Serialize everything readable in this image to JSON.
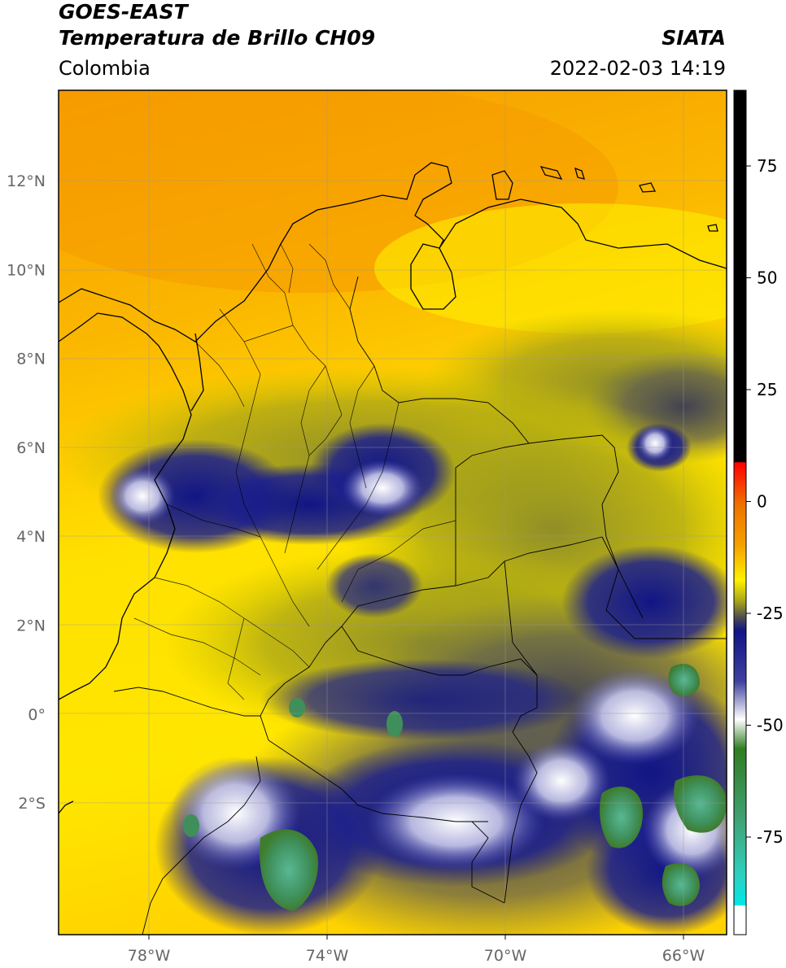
{
  "header": {
    "title_line1": "GOES-EAST",
    "title_line2": "Temperatura de Brillo CH09",
    "brand": "SIATA",
    "region": "Colombia",
    "datetime": "2022-02-03 14:19"
  },
  "map": {
    "lon_ticks": [
      "78°W",
      "74°W",
      "70°W",
      "66°W"
    ],
    "lat_ticks": [
      "12°N",
      "10°N",
      "8°N",
      "6°N",
      "4°N",
      "2°N",
      "0°",
      "2°S"
    ],
    "colorbar": {
      "ticks": [
        "75",
        "50",
        "25",
        "0",
        "-25",
        "-50",
        "-75"
      ],
      "colors": {
        "black": "#000000",
        "red": "#e02010",
        "orange": "#f59a00",
        "yellow": "#fff200",
        "olive": "#a8a418",
        "gray": "#555555",
        "navy": "#101585",
        "white": "#ffffff",
        "green": "#3f7d2e",
        "mint": "#5ab99a",
        "cyan": "#00dcdc"
      }
    }
  }
}
